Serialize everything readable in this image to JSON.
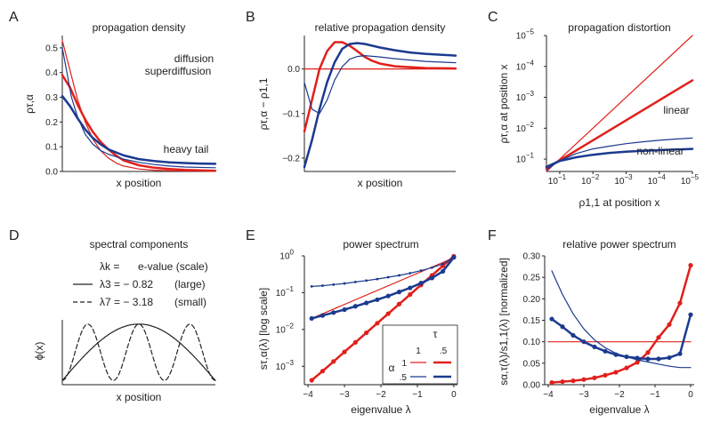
{
  "colors": {
    "red": "#e0201b",
    "blue": "#1b3a8f",
    "axis": "#222222"
  },
  "panel_letters": [
    "A",
    "B",
    "C",
    "D",
    "E",
    "F"
  ],
  "chart_data": [
    {
      "id": "A",
      "type": "line",
      "title": "propagation density",
      "xlabel": "x position",
      "ylabel": "ρτ,α",
      "xlim": [
        0,
        1
      ],
      "ylim": [
        0,
        0.55
      ],
      "yticks": [
        0.0,
        0.1,
        0.2,
        0.3,
        0.4,
        0.5
      ],
      "ytick_labels": [
        "0.0",
        "0.1",
        "0.2",
        "0.3",
        "0.4",
        "0.5"
      ],
      "annotations": [
        "diffusion",
        "superdiffusion",
        "heavy tail"
      ],
      "series": [
        {
          "name": "diffusion τ=1 α=1",
          "color": "red",
          "width": 1.2,
          "x": [
            0,
            0.05,
            0.1,
            0.15,
            0.2,
            0.25,
            0.3,
            0.35,
            0.4,
            0.5,
            0.6,
            0.7,
            0.8,
            1.0
          ],
          "y": [
            0.53,
            0.41,
            0.29,
            0.2,
            0.13,
            0.085,
            0.055,
            0.035,
            0.022,
            0.01,
            0.005,
            0.003,
            0.002,
            0.001
          ]
        },
        {
          "name": "diffusion τ=.5 α=1",
          "color": "red",
          "width": 2.5,
          "x": [
            0,
            0.05,
            0.1,
            0.15,
            0.2,
            0.25,
            0.3,
            0.35,
            0.4,
            0.5,
            0.6,
            0.7,
            0.8,
            1.0
          ],
          "y": [
            0.39,
            0.34,
            0.27,
            0.21,
            0.16,
            0.12,
            0.09,
            0.065,
            0.045,
            0.025,
            0.015,
            0.01,
            0.006,
            0.003
          ]
        },
        {
          "name": "superdiffusion τ=1 α=.5",
          "color": "blue",
          "width": 1.2,
          "x": [
            0,
            0.03,
            0.06,
            0.1,
            0.15,
            0.2,
            0.25,
            0.3,
            0.4,
            0.5,
            0.6,
            0.7,
            0.8,
            1.0
          ],
          "y": [
            0.5,
            0.4,
            0.3,
            0.22,
            0.15,
            0.11,
            0.085,
            0.07,
            0.05,
            0.037,
            0.028,
            0.022,
            0.018,
            0.015
          ]
        },
        {
          "name": "heavy tail τ=.5 α=.5",
          "color": "blue",
          "width": 2.5,
          "x": [
            0,
            0.05,
            0.1,
            0.15,
            0.2,
            0.25,
            0.3,
            0.4,
            0.5,
            0.6,
            0.7,
            0.8,
            0.9,
            1.0
          ],
          "y": [
            0.305,
            0.265,
            0.215,
            0.17,
            0.135,
            0.11,
            0.09,
            0.065,
            0.05,
            0.042,
            0.037,
            0.034,
            0.032,
            0.031
          ]
        }
      ]
    },
    {
      "id": "B",
      "type": "line",
      "title": "relative propagation density",
      "xlabel": "x position",
      "ylabel": "ρτ,α − ρ1,1",
      "xlim": [
        0,
        1
      ],
      "ylim": [
        -0.23,
        0.075
      ],
      "yticks": [
        -0.2,
        -0.1,
        0.0
      ],
      "ytick_labels": [
        "−0.2",
        "−0.1",
        "0.0"
      ],
      "series": [
        {
          "name": "τ=1 α=1",
          "color": "red",
          "width": 1.2,
          "x": [
            0,
            1
          ],
          "y": [
            0,
            0
          ]
        },
        {
          "name": "τ=.5 α=1",
          "color": "red",
          "width": 2.5,
          "x": [
            0,
            0.05,
            0.1,
            0.15,
            0.2,
            0.25,
            0.3,
            0.35,
            0.4,
            0.45,
            0.5,
            0.6,
            0.7,
            0.8,
            1.0
          ],
          "y": [
            -0.14,
            -0.07,
            0.0,
            0.04,
            0.06,
            0.06,
            0.052,
            0.04,
            0.027,
            0.018,
            0.012,
            0.006,
            0.004,
            0.002,
            0.001
          ]
        },
        {
          "name": "τ=1 α=.5",
          "color": "blue",
          "width": 1.2,
          "x": [
            0,
            0.05,
            0.1,
            0.15,
            0.2,
            0.25,
            0.3,
            0.35,
            0.4,
            0.5,
            0.6,
            0.7,
            0.8,
            1.0
          ],
          "y": [
            -0.03,
            -0.09,
            -0.1,
            -0.07,
            -0.025,
            0.005,
            0.022,
            0.028,
            0.03,
            0.027,
            0.023,
            0.02,
            0.017,
            0.014
          ]
        },
        {
          "name": "τ=.5 α=.5",
          "color": "blue",
          "width": 2.5,
          "x": [
            0,
            0.05,
            0.1,
            0.15,
            0.2,
            0.25,
            0.3,
            0.35,
            0.4,
            0.45,
            0.5,
            0.6,
            0.7,
            0.8,
            0.9,
            1.0
          ],
          "y": [
            -0.22,
            -0.16,
            -0.09,
            -0.03,
            0.015,
            0.045,
            0.056,
            0.058,
            0.056,
            0.052,
            0.048,
            0.042,
            0.037,
            0.034,
            0.032,
            0.03
          ]
        }
      ]
    },
    {
      "id": "C",
      "type": "line",
      "title": "propagation distortion",
      "xlabel": "ρ1,1 at position x",
      "ylabel": "ρτ,α at position x",
      "axis_scale": "log, inverted (exponent runs -1 to -5)",
      "xlim": [
        -0.6,
        -5
      ],
      "ylim": [
        -0.6,
        -5
      ],
      "ticks": [
        -1,
        -2,
        -3,
        -4,
        -5
      ],
      "tick_labels": [
        "10",
        "10",
        "10",
        "10",
        "10"
      ],
      "tick_exponents": [
        "−1",
        "−2",
        "−3",
        "−4",
        "−5"
      ],
      "annotations": [
        "linear",
        "non-linear"
      ],
      "series": [
        {
          "name": "τ=1 α=1",
          "color": "red",
          "width": 1.2,
          "x": [
            -0.6,
            -5
          ],
          "y": [
            -0.6,
            -5
          ]
        },
        {
          "name": "τ=.5 α=1 (linear)",
          "color": "red",
          "width": 2.5,
          "x": [
            -0.6,
            -5
          ],
          "y": [
            -0.7,
            -3.55
          ]
        },
        {
          "name": "τ=1 α=.5",
          "color": "blue",
          "width": 1.2,
          "x": [
            -0.6,
            -1,
            -1.5,
            -2,
            -2.5,
            -3,
            -3.5,
            -4,
            -4.5,
            -5
          ],
          "y": [
            -0.65,
            -0.95,
            -1.18,
            -1.33,
            -1.42,
            -1.5,
            -1.56,
            -1.61,
            -1.65,
            -1.68
          ]
        },
        {
          "name": "τ=.5 α=.5 (non-linear)",
          "color": "blue",
          "width": 2.5,
          "x": [
            -0.6,
            -1,
            -1.5,
            -2,
            -2.5,
            -3,
            -3.5,
            -4,
            -4.5,
            -5
          ],
          "y": [
            -0.75,
            -0.94,
            -1.06,
            -1.14,
            -1.2,
            -1.24,
            -1.27,
            -1.29,
            -1.31,
            -1.33
          ]
        }
      ]
    },
    {
      "id": "D",
      "type": "line",
      "title": "spectral components",
      "xlabel": "x position",
      "ylabel": "ϕ(x)",
      "xlim": [
        0,
        1
      ],
      "ylim": [
        -1.15,
        1.15
      ],
      "legend": [
        {
          "label": "λk =",
          "desc": "e-value (scale)",
          "style": "none"
        },
        {
          "label": "λ3 = − 0.82",
          "desc": "(large)",
          "style": "solid"
        },
        {
          "label": "λ7 = − 3.18",
          "desc": "(small)",
          "style": "dashed"
        }
      ],
      "series": [
        {
          "name": "λ3",
          "style": "solid",
          "cycles": 1
        },
        {
          "name": "λ7",
          "style": "dashed",
          "cycles": 3
        }
      ]
    },
    {
      "id": "E",
      "type": "line",
      "title": "power spectrum",
      "xlabel": "eigenvalue λ",
      "ylabel": "sτ,α(λ)   [log scale]",
      "y_scale": "log10",
      "xlim": [
        -4.1,
        0.1
      ],
      "ylim": [
        -3.5,
        0
      ],
      "xticks": [
        -4,
        -3,
        -2,
        -1,
        0
      ],
      "xtick_labels": [
        "−4",
        "−3",
        "−2",
        "−1",
        "0"
      ],
      "yticks": [
        -3,
        -2,
        -1,
        0
      ],
      "ytick_labels": [
        "10",
        "10",
        "10",
        "10"
      ],
      "ytick_exponents": [
        "−3",
        "−2",
        "−1",
        "0"
      ],
      "legend": {
        "col_header": "τ",
        "row_header": "α",
        "cols": [
          "1",
          ".5"
        ],
        "rows": [
          "1",
          ".5"
        ]
      },
      "series": [
        {
          "name": "τ=1 α=1",
          "color": "red",
          "width": 1.2,
          "markers": false,
          "x": [
            -3.9,
            0
          ],
          "y": [
            -1.7,
            -0.05
          ]
        },
        {
          "name": "τ=.5 α=1",
          "color": "red",
          "width": 2.5,
          "markers": true,
          "x": [
            -3.9,
            -3.6,
            -3.3,
            -3.0,
            -2.7,
            -2.4,
            -2.1,
            -1.8,
            -1.5,
            -1.2,
            -0.9,
            -0.6,
            -0.3,
            0
          ],
          "y": [
            -3.38,
            -3.13,
            -2.87,
            -2.61,
            -2.35,
            -2.09,
            -1.83,
            -1.57,
            -1.31,
            -1.05,
            -0.79,
            -0.53,
            -0.27,
            -0.01
          ]
        },
        {
          "name": "τ=1 α=.5",
          "color": "blue",
          "width": 1.2,
          "markers": true,
          "x": [
            -3.9,
            -3.6,
            -3.3,
            -3.0,
            -2.7,
            -2.4,
            -2.1,
            -1.8,
            -1.5,
            -1.2,
            -0.9,
            -0.6,
            -0.3,
            0
          ],
          "y": [
            -0.83,
            -0.81,
            -0.78,
            -0.75,
            -0.71,
            -0.67,
            -0.63,
            -0.58,
            -0.53,
            -0.47,
            -0.4,
            -0.32,
            -0.22,
            -0.04
          ]
        },
        {
          "name": "τ=.5 α=.5",
          "color": "blue",
          "width": 2.5,
          "markers": true,
          "x": [
            -3.9,
            -3.6,
            -3.3,
            -3.0,
            -2.7,
            -2.4,
            -2.1,
            -1.8,
            -1.5,
            -1.2,
            -0.9,
            -0.6,
            -0.3,
            0
          ],
          "y": [
            -1.7,
            -1.62,
            -1.54,
            -1.46,
            -1.37,
            -1.28,
            -1.19,
            -1.09,
            -0.98,
            -0.87,
            -0.74,
            -0.6,
            -0.42,
            -0.04
          ]
        }
      ]
    },
    {
      "id": "F",
      "type": "line",
      "title": "relative power spectrum",
      "xlabel": "eigenvalue λ",
      "ylabel": "sα,τ(λ)/s1,1(λ) [normalized]",
      "xlim": [
        -4.1,
        0.1
      ],
      "ylim": [
        0,
        0.3
      ],
      "xticks": [
        -4,
        -3,
        -2,
        -1,
        0
      ],
      "xtick_labels": [
        "−4",
        "−3",
        "−2",
        "−1",
        "0"
      ],
      "yticks": [
        0.0,
        0.05,
        0.1,
        0.15,
        0.2,
        0.25,
        0.3
      ],
      "ytick_labels": [
        "0.00",
        "0.05",
        "0.10",
        "0.15",
        "0.20",
        "0.25",
        "0.30"
      ],
      "series": [
        {
          "name": "τ=1 α=1",
          "color": "red",
          "width": 1.2,
          "markers": false,
          "x": [
            -4,
            0
          ],
          "y": [
            0.1,
            0.1
          ]
        },
        {
          "name": "τ=.5 α=1",
          "color": "red",
          "width": 2.5,
          "markers": true,
          "x": [
            -3.9,
            -3.6,
            -3.3,
            -3.0,
            -2.7,
            -2.4,
            -2.1,
            -1.8,
            -1.5,
            -1.2,
            -0.9,
            -0.6,
            -0.3,
            0
          ],
          "y": [
            0.005,
            0.007,
            0.009,
            0.012,
            0.016,
            0.022,
            0.029,
            0.039,
            0.052,
            0.075,
            0.11,
            0.14,
            0.19,
            0.278
          ]
        },
        {
          "name": "τ=1 α=.5",
          "color": "blue",
          "width": 1.2,
          "markers": false,
          "x": [
            -3.9,
            -3.6,
            -3.3,
            -3.0,
            -2.7,
            -2.4,
            -2.1,
            -1.8,
            -1.5,
            -1.2,
            -0.9,
            -0.6,
            -0.3,
            0
          ],
          "y": [
            0.265,
            0.21,
            0.165,
            0.13,
            0.104,
            0.086,
            0.073,
            0.065,
            0.058,
            0.053,
            0.048,
            0.043,
            0.04,
            0.04
          ]
        },
        {
          "name": "τ=.5 α=.5",
          "color": "blue",
          "width": 2.5,
          "markers": true,
          "x": [
            -3.9,
            -3.6,
            -3.3,
            -3.0,
            -2.7,
            -2.4,
            -2.1,
            -1.8,
            -1.5,
            -1.2,
            -0.9,
            -0.6,
            -0.3,
            0
          ],
          "y": [
            0.153,
            0.135,
            0.115,
            0.1,
            0.088,
            0.078,
            0.07,
            0.065,
            0.062,
            0.06,
            0.06,
            0.063,
            0.072,
            0.163
          ]
        }
      ]
    }
  ]
}
